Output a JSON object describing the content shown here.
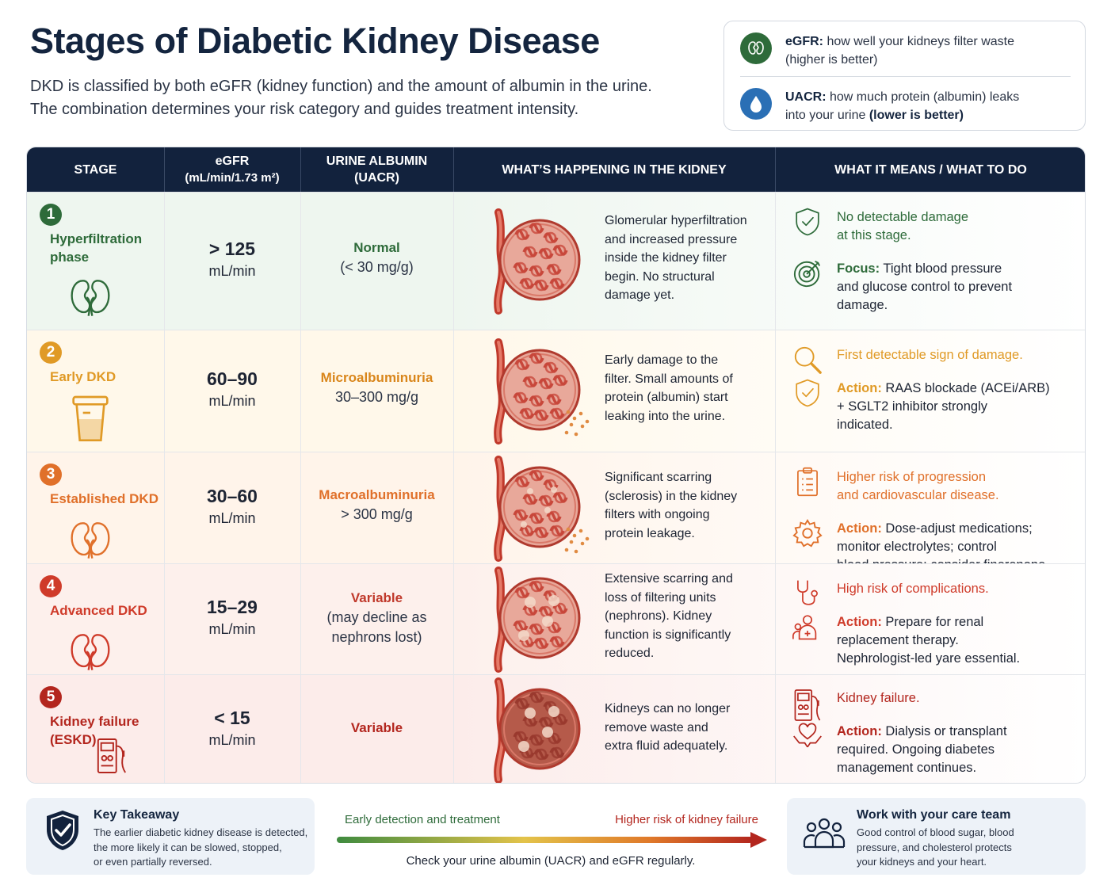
{
  "header": {
    "title": "Stages of Diabetic Kidney Disease",
    "subtitle_line1": "DKD is classified by both eGFR (kidney function) and the amount of albumin in the urine.",
    "subtitle_line2": "The combination determines your risk category and guides treatment intensity."
  },
  "legend": {
    "egfr_term": "eGFR:",
    "egfr_text1": " how well your kidneys filter waste",
    "egfr_text2": "(higher is better)",
    "uacr_term": "UACR:",
    "uacr_text1": " how much protein (albumin) leaks",
    "uacr_text2": "into your urine ",
    "uacr_text3": "(lower is better)",
    "egfr_icon": "kidney-icon",
    "uacr_icon": "droplet-icon",
    "egfr_color": "#2e6b3a",
    "uacr_color": "#2a6fb5"
  },
  "columns": {
    "stage": "STAGE",
    "egfr_1": "eGFR",
    "egfr_2": "(mL/min/1.73 m²)",
    "albumin_1": "URINE ALBUMIN",
    "albumin_2": "(UACR)",
    "kidney": "WHAT’S HAPPENING IN THE KIDNEY",
    "means": "WHAT IT MEANS / WHAT TO DO"
  },
  "stages": [
    {
      "num": "1",
      "name1": "Hyperfiltration",
      "name2": "phase",
      "color": "#2e6b3a",
      "bg": "#eef6ef",
      "icon": "kidney-icon",
      "egfr_value": "> 125",
      "egfr_unit": "mL/min",
      "albumin_label": "Normal",
      "albumin_range": "(< 30 mg/g)",
      "albumin_color": "#2e6b3a",
      "desc": [
        "Glomerular hyperfiltration",
        "and increased pressure",
        "inside the kidney filter",
        "begin. No structural",
        "damage yet."
      ],
      "what": [
        {
          "icon": "shield-check-icon",
          "prefix": "",
          "lines": [
            "No detectable damage",
            "at this stage."
          ],
          "plain": []
        },
        {
          "icon": "target-icon",
          "prefix": "Focus:",
          "lines": [],
          "plain": [
            " Tight blood pressure",
            "and glucose control to prevent",
            "damage."
          ]
        }
      ]
    },
    {
      "num": "2",
      "name1": "Early DKD",
      "name2": "",
      "color": "#e09a26",
      "bg": "#fff8ea",
      "icon": "urine-cup-icon",
      "egfr_value": "60–90",
      "egfr_unit": "mL/min",
      "albumin_label": "Microalbuminuria",
      "albumin_range": "30–300 mg/g",
      "albumin_color": "#d9861b",
      "desc": [
        "Early damage to the",
        "filter. Small amounts of",
        "protein (albumin) start",
        "leaking into the urine."
      ],
      "what": [
        {
          "icon": "magnifier-icon",
          "prefix": "",
          "lines": [
            "First detectable sign of damage."
          ],
          "plain": []
        },
        {
          "icon": "shield-check-icon",
          "prefix": "Action:",
          "lines": [],
          "plain": [
            " RAAS blockade (ACEi/ARB)",
            "+ SGLT2 inhibitor strongly",
            "indicated."
          ]
        }
      ]
    },
    {
      "num": "3",
      "name1": "Established DKD",
      "name2": "",
      "color": "#e0702a",
      "bg": "#fff4ea",
      "icon": "kidney-icon",
      "egfr_value": "30–60",
      "egfr_unit": "mL/min",
      "albumin_label": "Macroalbuminuria",
      "albumin_range": "> 300 mg/g",
      "albumin_color": "#e0702a",
      "desc": [
        "Significant scarring",
        "(sclerosis) in the kidney",
        "filters with ongoing",
        "protein leakage."
      ],
      "what": [
        {
          "icon": "clipboard-icon",
          "prefix": "",
          "lines": [
            "Higher risk of progression",
            "and cardiovascular disease."
          ],
          "plain": []
        },
        {
          "icon": "gear-icon",
          "prefix": "Action:",
          "lines": [],
          "plain": [
            " Dose-adjust medications;",
            "monitor electrolytes; control",
            "blood pressure; consider finerenone."
          ]
        }
      ]
    },
    {
      "num": "4",
      "name1": "Advanced DKD",
      "name2": "",
      "color": "#cf3b2a",
      "bg": "#fdf0ec",
      "icon": "kidney-icon",
      "egfr_value": "15–29",
      "egfr_unit": "mL/min",
      "albumin_label": "Variable",
      "albumin_range": "(may decline as",
      "albumin_range2": "nephrons lost)",
      "albumin_color": "#c0392b",
      "desc": [
        "Extensive scarring and",
        "loss of filtering units",
        "(nephrons). Kidney",
        "function is significantly",
        "reduced."
      ],
      "what": [
        {
          "icon": "stethoscope-icon",
          "prefix": "",
          "lines": [
            "High risk of complications."
          ],
          "plain": []
        },
        {
          "icon": "care-team-icon",
          "prefix": "Action:",
          "lines": [],
          "plain": [
            " Prepare for renal",
            "replacement therapy.",
            "Nephrologist-led yare essential."
          ]
        }
      ]
    },
    {
      "num": "5",
      "name1": "Kidney failure",
      "name2": "(ESKD)",
      "color": "#b3261e",
      "bg": "#fcecea",
      "icon": "dialysis-machine-icon",
      "egfr_value": "< 15",
      "egfr_unit": "mL/min",
      "albumin_label": "Variable",
      "albumin_range": "",
      "albumin_color": "#b3261e",
      "desc": [
        "Kidneys can no longer",
        "remove waste and",
        "extra fluid adequately."
      ],
      "what": [
        {
          "icon": "dialysis-machine-icon",
          "prefix": "",
          "lines": [
            "Kidney failure."
          ],
          "plain": []
        },
        {
          "icon": "heart-hands-icon",
          "prefix": "Action:",
          "lines": [],
          "plain": [
            " Dialysis or transplant",
            "required. Ongoing diabetes",
            "management continues."
          ]
        }
      ]
    }
  ],
  "footer": {
    "takeaway_title": "Key Takeaway",
    "takeaway_body": [
      "The earlier diabetic kidney disease is detected,",
      "the more likely it can be slowed, stopped,",
      "or even partially reversed."
    ],
    "arrow_left": "Early detection and treatment",
    "arrow_right": "Higher risk of kidney failure",
    "arrow_caption": "Check your urine albumin (UACR) and eGFR regularly.",
    "team_title": "Work with your care team",
    "team_body": [
      "Good control of blood sugar, blood",
      "pressure, and cholesterol protects",
      "your kidneys and your heart."
    ]
  }
}
